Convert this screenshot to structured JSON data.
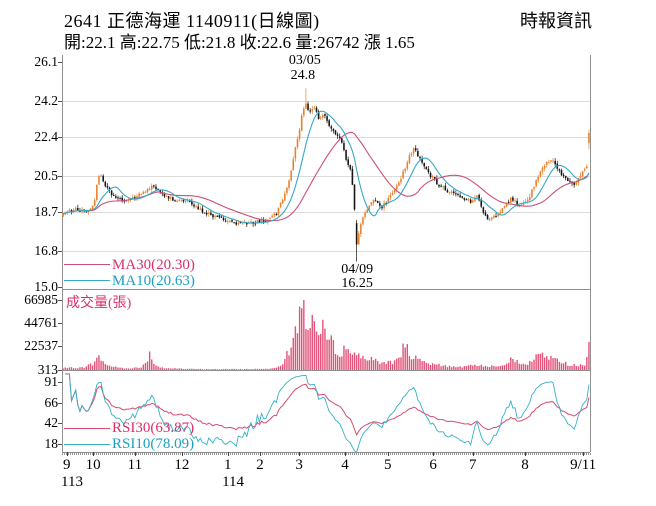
{
  "header": {
    "title": "2641  正德海運 1140911(日線圖)",
    "source": "時報資訊",
    "stats": "開:22.1 高:22.75 低:21.8 收:22.6 量:26742 漲 1.65"
  },
  "colors": {
    "up_candle": "#e8822c",
    "down_candle": "#161616",
    "ma30_line": "#cc4f7a",
    "ma10_line": "#35a9c4",
    "rsi30_line": "#d94a6e",
    "rsi10_line": "#35b0c8",
    "volume_bar": "#e25379",
    "crimson_label": "#dc2f6a",
    "cyan_label": "#1b9fc0",
    "grid": "#dcdcdc",
    "border": "#909090",
    "axis_dots": "#333333"
  },
  "chart_data": {
    "type": "candlestick_volume_rsi",
    "title": "2641 正德海運 日線圖",
    "price_axis_ticks": [
      "26.1",
      "24.2",
      "22.4",
      "20.5",
      "18.7",
      "16.8",
      "15.0"
    ],
    "price_axis_values": [
      26.1,
      24.2,
      22.4,
      20.5,
      18.7,
      16.8,
      15.0
    ],
    "volume_axis_ticks": [
      "66985",
      "44761",
      "22537",
      "313"
    ],
    "volume_axis_values": [
      66985,
      44761,
      22537,
      313
    ],
    "rsi_axis_ticks": [
      "91",
      "66",
      "42",
      "18"
    ],
    "rsi_axis_values": [
      91,
      66,
      42,
      18
    ],
    "x_axis": {
      "months": [
        {
          "label": "9",
          "t": 0.009
        },
        {
          "label": "10",
          "t": 0.059
        },
        {
          "label": "11",
          "t": 0.138
        },
        {
          "label": "12",
          "t": 0.227
        },
        {
          "label": "1",
          "t": 0.314
        },
        {
          "label": "2",
          "t": 0.375
        },
        {
          "label": "3",
          "t": 0.449
        },
        {
          "label": "4",
          "t": 0.536
        },
        {
          "label": "5",
          "t": 0.617
        },
        {
          "label": "6",
          "t": 0.703
        },
        {
          "label": "7",
          "t": 0.778
        },
        {
          "label": "8",
          "t": 0.877
        },
        {
          "label": "9/11",
          "t": 0.987
        }
      ],
      "years": [
        {
          "label": "113",
          "t": 0.019
        },
        {
          "label": "114",
          "t": 0.324
        }
      ]
    },
    "legend": {
      "ma30": "MA30(20.30)",
      "ma10": "MA10(20.63)",
      "volume": "成交量(張)",
      "rsi30": "RSI30(63.87)",
      "rsi10": "RSI10(78.09)"
    },
    "annotations": {
      "peak": {
        "date": "03/05",
        "price": "24.8",
        "t": 0.46
      },
      "trough": {
        "date": "04/09",
        "price": "16.25",
        "t": 0.559
      }
    },
    "last_candle": {
      "open": 22.1,
      "high": 22.75,
      "low": 21.8,
      "close": 22.6,
      "volume": 26742,
      "change": 1.65
    },
    "extremes": {
      "high": 24.8,
      "low": 16.25
    },
    "price_range": [
      15.0,
      26.1
    ],
    "volume_range": [
      313,
      66985
    ],
    "rsi_range": [
      18,
      91
    ],
    "n_days": 250,
    "close_waypoints": [
      [
        0,
        18.6
      ],
      [
        0.02,
        18.85
      ],
      [
        0.045,
        18.7
      ],
      [
        0.06,
        19.2
      ],
      [
        0.066,
        20.3
      ],
      [
        0.072,
        20.6
      ],
      [
        0.08,
        20.0
      ],
      [
        0.095,
        19.5
      ],
      [
        0.115,
        19.25
      ],
      [
        0.14,
        19.45
      ],
      [
        0.16,
        19.8
      ],
      [
        0.172,
        20.0
      ],
      [
        0.19,
        19.5
      ],
      [
        0.215,
        19.3
      ],
      [
        0.235,
        19.25
      ],
      [
        0.26,
        18.8
      ],
      [
        0.285,
        18.5
      ],
      [
        0.31,
        18.3
      ],
      [
        0.33,
        18.15
      ],
      [
        0.35,
        18.1
      ],
      [
        0.37,
        18.25
      ],
      [
        0.39,
        18.3
      ],
      [
        0.405,
        18.6
      ],
      [
        0.418,
        19.4
      ],
      [
        0.43,
        20.3
      ],
      [
        0.44,
        21.6
      ],
      [
        0.45,
        22.8
      ],
      [
        0.455,
        23.6
      ],
      [
        0.46,
        24.1
      ],
      [
        0.468,
        23.7
      ],
      [
        0.478,
        23.8
      ],
      [
        0.487,
        23.3
      ],
      [
        0.497,
        23.5
      ],
      [
        0.505,
        22.9
      ],
      [
        0.515,
        22.6
      ],
      [
        0.527,
        22.3
      ],
      [
        0.54,
        21.2
      ],
      [
        0.548,
        20.8
      ],
      [
        0.553,
        19.2
      ],
      [
        0.559,
        17.1
      ],
      [
        0.565,
        18.0
      ],
      [
        0.575,
        18.8
      ],
      [
        0.59,
        19.3
      ],
      [
        0.605,
        18.9
      ],
      [
        0.62,
        19.4
      ],
      [
        0.64,
        20.2
      ],
      [
        0.658,
        21.4
      ],
      [
        0.668,
        21.9
      ],
      [
        0.678,
        21.3
      ],
      [
        0.695,
        20.6
      ],
      [
        0.715,
        20.0
      ],
      [
        0.735,
        19.7
      ],
      [
        0.755,
        19.5
      ],
      [
        0.775,
        19.2
      ],
      [
        0.788,
        19.6
      ],
      [
        0.797,
        18.7
      ],
      [
        0.81,
        18.3
      ],
      [
        0.825,
        18.6
      ],
      [
        0.84,
        19.0
      ],
      [
        0.854,
        19.4
      ],
      [
        0.868,
        18.9
      ],
      [
        0.885,
        19.3
      ],
      [
        0.9,
        20.3
      ],
      [
        0.916,
        21.0
      ],
      [
        0.928,
        21.3
      ],
      [
        0.942,
        20.8
      ],
      [
        0.957,
        20.3
      ],
      [
        0.972,
        20.1
      ],
      [
        0.985,
        20.5
      ],
      [
        0.994,
        20.95
      ],
      [
        1,
        22.6
      ]
    ],
    "volume_waypoints": [
      [
        0,
        1800
      ],
      [
        0.04,
        2500
      ],
      [
        0.06,
        7000
      ],
      [
        0.068,
        12500
      ],
      [
        0.075,
        8000
      ],
      [
        0.09,
        3500
      ],
      [
        0.12,
        1500
      ],
      [
        0.15,
        2500
      ],
      [
        0.165,
        15500
      ],
      [
        0.172,
        6000
      ],
      [
        0.19,
        2000
      ],
      [
        0.22,
        1200
      ],
      [
        0.26,
        900
      ],
      [
        0.3,
        800
      ],
      [
        0.35,
        900
      ],
      [
        0.39,
        1200
      ],
      [
        0.41,
        3500
      ],
      [
        0.42,
        9000
      ],
      [
        0.43,
        18000
      ],
      [
        0.44,
        34000
      ],
      [
        0.45,
        52000
      ],
      [
        0.458,
        66985
      ],
      [
        0.465,
        42000
      ],
      [
        0.475,
        52000
      ],
      [
        0.485,
        30000
      ],
      [
        0.495,
        38000
      ],
      [
        0.51,
        26000
      ],
      [
        0.525,
        17000
      ],
      [
        0.54,
        21000
      ],
      [
        0.553,
        14000
      ],
      [
        0.56,
        16000
      ],
      [
        0.575,
        12000
      ],
      [
        0.59,
        9000
      ],
      [
        0.61,
        7000
      ],
      [
        0.63,
        8000
      ],
      [
        0.652,
        24000
      ],
      [
        0.663,
        13000
      ],
      [
        0.68,
        8000
      ],
      [
        0.7,
        5500
      ],
      [
        0.72,
        4200
      ],
      [
        0.74,
        3500
      ],
      [
        0.765,
        3000
      ],
      [
        0.788,
        5200
      ],
      [
        0.8,
        4200
      ],
      [
        0.82,
        3600
      ],
      [
        0.84,
        6500
      ],
      [
        0.854,
        11500
      ],
      [
        0.87,
        5000
      ],
      [
        0.887,
        6500
      ],
      [
        0.9,
        13500
      ],
      [
        0.915,
        15500
      ],
      [
        0.928,
        11500
      ],
      [
        0.942,
        8500
      ],
      [
        0.958,
        5800
      ],
      [
        0.972,
        5000
      ],
      [
        0.985,
        4200
      ],
      [
        0.994,
        3800
      ],
      [
        1,
        26742
      ]
    ]
  }
}
